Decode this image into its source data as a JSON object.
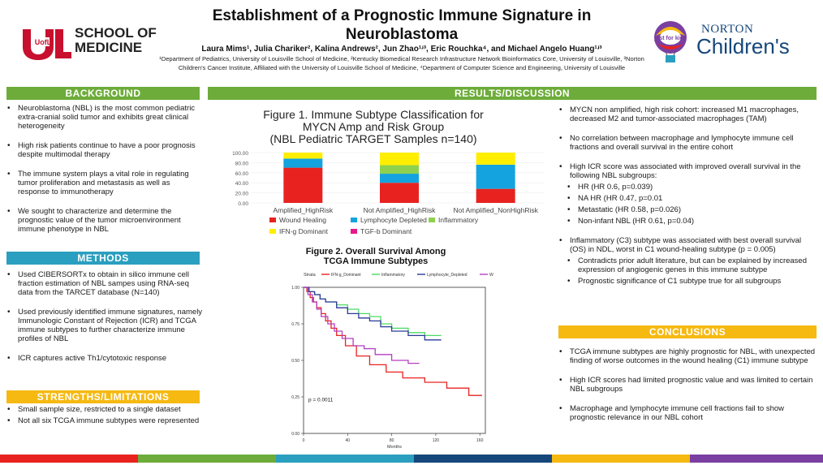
{
  "poster": {
    "title_line1": "Establishment of a Prognostic Immune Signature in",
    "title_line2": "Neuroblastoma",
    "authors": "Laura Mims¹, Julia Chariker², Kalina Andrews², Jun Zhao¹ʴ³, Eric Rouchka⁴, and Michael Angelo Huang¹ʴ³",
    "affiliations": "¹Department of Pediatrics, University of Louisville School of Medicine, ²Kentucky Biomedical Research Infrastructure Network Bioinformatics Core, University of Louisville, ³Norton Children's Cancer Institute, Affiliated with the University of Louisville School of Medicine, ⁴Department of Computer Science and Engineering, University of Louisville"
  },
  "logos": {
    "left_mark": "UofL",
    "left_line1": "SCHOOL OF",
    "left_line2": "MEDICINE",
    "right_line1": "NORTON",
    "right_line2": "Children's",
    "right_badge": "just for kids"
  },
  "colors": {
    "green": "#6dac3a",
    "teal": "#2b9fbf",
    "yellow": "#f6b912",
    "wound": "#e8231f",
    "lymph": "#14a3df",
    "inflam": "#8fd14f",
    "ifng": "#ffee00",
    "tgfb": "#e8168a"
  },
  "background": {
    "header": "BACKGROUND",
    "bullets": [
      "Neuroblastoma (NBL) is the most common pediatric extra-cranial solid tumor and exhibits great clinical heterogeneity",
      "High risk patients continue to have a poor prognosis despite multimodal therapy",
      "The immune system plays a vital role in regulating tumor proliferation and metastasis as well as response to immunotherapy",
      "We sought to characterize and determine the prognostic value of the tumor microenvironment immune phenotype in NBL"
    ]
  },
  "methods": {
    "header": "METHODS",
    "bullets": [
      "Used CIBERSORTx to obtain in silico immune cell fraction estimation of NBL sampes using RNA-seq data from the TARCET database (N=140)",
      "Used previously identified immune signatures, namely Immunologic Constant of Rejection (ICR) and TCGA immune subtypes to further characterize immune profiles of NBL",
      "ICR captures active Th1/cytotoxic response"
    ]
  },
  "strengths": {
    "header": "STRENGTHS/LIMITATIONS",
    "bullets": [
      "Small sample size, restricted to a single dataset",
      "Not all six TCGA immune subtypes were represented"
    ]
  },
  "results": {
    "header": "RESULTS/DISCUSSION",
    "fig1_title_line1": "Figure 1. Immune Subtype Classification for",
    "fig1_title_line2": "MYCN Amp and Risk Group",
    "fig1_title_line3": "(NBL Pediatric TARGET Samples n=140)",
    "fig2_title_line1": "Figure 2. Overall Survival Among",
    "fig2_title_line2": "TCGA Immune Subtypes",
    "bullets": [
      {
        "text": "MYCN non amplified, high risk cohort: increased M1 macrophages, decreased M2 and tumor-associated macrophages (TAM)",
        "sub": false,
        "gap": true
      },
      {
        "text": "No correlation between macrophage and lymphocyte immune cell fractions and overall survival in the entire cohort",
        "sub": false,
        "gap": true
      },
      {
        "text": "High ICR score was associated with improved overall survival in the following NBL subgroups:",
        "sub": false,
        "gap": false
      },
      {
        "text": "HR (HR 0.6, p=0.039)",
        "sub": true,
        "gap": false
      },
      {
        "text": "NA HR (HR 0.47, p=0.01",
        "sub": true,
        "gap": false
      },
      {
        "text": "Metastatic (HR 0.58, p=0.026)",
        "sub": true,
        "gap": false
      },
      {
        "text": "Non-infant NBL (HR 0.61, p=0.04)",
        "sub": true,
        "gap": true
      },
      {
        "text": "Inflammatory (C3) subtype was associated with best overall survival (OS) in NDL, worst in C1 wound-healing subtype (p = 0.005)",
        "sub": false,
        "gap": false
      },
      {
        "text": "Contradicts prior adult literature, but can be explained by increased expression of angiogenic genes in this immune subtype",
        "sub": true,
        "gap": false
      },
      {
        "text": "Prognostic significance of C1 subtype true for all subgroups",
        "sub": true,
        "gap": false
      }
    ]
  },
  "conclusions": {
    "header": "CONCLUSIONS",
    "bullets": [
      "TCGA immune subtypes are highly prognostic for NBL, with unexpected finding of worse outcomes in the wound healing (C1) immune subtype",
      "High ICR scores had limited prognostic value and was limited to certain NBL subgroups",
      "Macrophage and lymphocyte immune cell fractions fail to show prognostic relevance in our NBL cohort"
    ]
  },
  "chart_data": [
    {
      "type": "bar",
      "stacked": true,
      "title": "Figure 1. Immune Subtype Classification for MYCN Amp and Risk Group (NBL Pediatric TARGET Samples n=140)",
      "categories": [
        "Amplified_HighRisk",
        "Not Amplified_HighRisk",
        "Not Amplified_NonHighRisk"
      ],
      "yticks": [
        "100.00",
        "80.00",
        "60.00",
        "40.00",
        "20.00",
        "0.00"
      ],
      "ylim": [
        0,
        100
      ],
      "series": [
        {
          "name": "Wound Healing",
          "color": "#e8231f",
          "values": [
            70,
            40,
            28
          ]
        },
        {
          "name": "Lymphocyte Depleted",
          "color": "#14a3df",
          "values": [
            18,
            18,
            48
          ]
        },
        {
          "name": "Inflammatory",
          "color": "#8fd14f",
          "values": [
            0,
            17,
            0
          ]
        },
        {
          "name": "IFN-g Dominant",
          "color": "#ffee00",
          "values": [
            12,
            25,
            24
          ]
        },
        {
          "name": "TGF-b Dominant",
          "color": "#e8168a",
          "values": [
            0,
            0,
            0
          ]
        }
      ],
      "legend_position": "bottom"
    },
    {
      "type": "line",
      "title": "Figure 2. Overall Survival Among TCGA Immune Subtypes",
      "legend_title": "Strata",
      "xlabel": "Months",
      "xticks": [
        "0",
        "40",
        "80",
        "120",
        "160"
      ],
      "yticks": [
        "1.00",
        "0.75",
        "0.50",
        "0.25",
        "0.00"
      ],
      "xlim": [
        0,
        165
      ],
      "ylim": [
        0,
        1
      ],
      "annotation": "p = 0.0011",
      "series": [
        {
          "name": "IFN-g_Dominant",
          "color": "#e8231f",
          "x": [
            0,
            3,
            6,
            9,
            12,
            16,
            20,
            25,
            30,
            38,
            48,
            60,
            75,
            90,
            110,
            130,
            150,
            162
          ],
          "y": [
            1,
            0.97,
            0.93,
            0.9,
            0.86,
            0.82,
            0.77,
            0.72,
            0.67,
            0.6,
            0.53,
            0.47,
            0.42,
            0.38,
            0.35,
            0.31,
            0.26,
            0.26
          ]
        },
        {
          "name": "Inflammatory",
          "color": "#4cd964",
          "x": [
            0,
            5,
            10,
            15,
            20,
            30,
            40,
            50,
            60,
            70,
            80,
            95,
            110,
            125
          ],
          "y": [
            1,
            0.97,
            0.95,
            0.92,
            0.9,
            0.88,
            0.85,
            0.82,
            0.8,
            0.75,
            0.72,
            0.69,
            0.67,
            0.67
          ]
        },
        {
          "name": "Lymphocyte_Depleted",
          "color": "#2a3a9a",
          "x": [
            0,
            5,
            10,
            15,
            20,
            30,
            40,
            50,
            60,
            70,
            80,
            95,
            110,
            125
          ],
          "y": [
            1,
            0.97,
            0.95,
            0.92,
            0.9,
            0.86,
            0.82,
            0.79,
            0.77,
            0.73,
            0.7,
            0.67,
            0.64,
            0.64
          ]
        },
        {
          "name": "Wound_Healing",
          "color": "#b23fc0",
          "x": [
            0,
            4,
            8,
            12,
            16,
            22,
            28,
            35,
            45,
            55,
            65,
            80,
            95,
            105
          ],
          "y": [
            1,
            0.95,
            0.9,
            0.85,
            0.8,
            0.75,
            0.7,
            0.65,
            0.6,
            0.58,
            0.54,
            0.5,
            0.48,
            0.48
          ]
        }
      ]
    }
  ]
}
